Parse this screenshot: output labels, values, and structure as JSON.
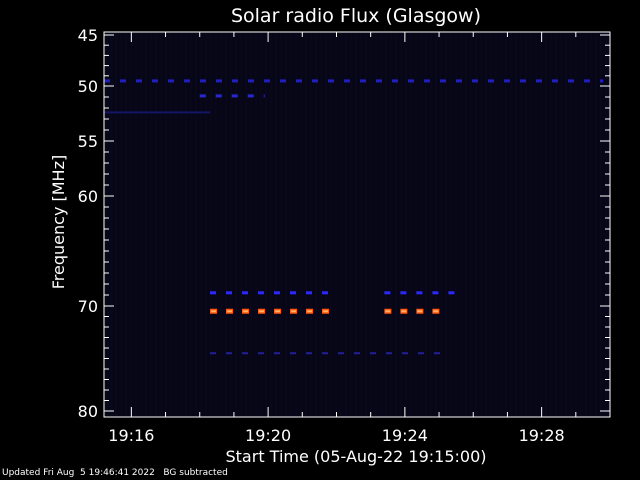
{
  "chart_data": {
    "type": "heatmap",
    "title": "Solar radio Flux (Glasgow)",
    "xlabel": "Start Time (05-Aug-22 19:15:00)",
    "ylabel": "Frequency [MHz]",
    "x_range_minutes": [
      19.25,
      19.49
    ],
    "y_range_mhz": [
      45,
      80
    ],
    "x_ticks": [
      {
        "label": "19:16",
        "minute": 16
      },
      {
        "label": "19:20",
        "minute": 20
      },
      {
        "label": "19:24",
        "minute": 24
      },
      {
        "label": "19:28",
        "minute": 28
      }
    ],
    "y_ticks": [
      {
        "label": "45",
        "mhz": 45
      },
      {
        "label": "50",
        "mhz": 50
      },
      {
        "label": "55",
        "mhz": 55
      },
      {
        "label": "60",
        "mhz": 60
      },
      {
        "label": "70",
        "mhz": 70
      },
      {
        "label": "80",
        "mhz": 80
      }
    ],
    "features": [
      {
        "name": "49.5 MHz persistent line",
        "mhz": 49.5,
        "start": 15.2,
        "end": 29.8,
        "intensity": "medium",
        "color": "#2020c0",
        "dashed": true
      },
      {
        "name": "51 MHz line",
        "mhz": 50.9,
        "start": 18.0,
        "end": 19.9,
        "intensity": "medium",
        "color": "#2828d0",
        "dashed": true
      },
      {
        "name": "52.5 MHz faint line",
        "mhz": 52.4,
        "start": 15.2,
        "end": 18.3,
        "intensity": "low",
        "color": "#141468",
        "dashed": false
      },
      {
        "name": "68.8 MHz burst A",
        "mhz": 68.8,
        "start": 18.3,
        "end": 21.9,
        "intensity": "medium",
        "color": "#2a2aff",
        "dashed": true
      },
      {
        "name": "70.5 MHz burst A",
        "mhz": 70.5,
        "start": 18.3,
        "end": 21.9,
        "intensity": "high",
        "color": "#ff5a14",
        "dashed": true
      },
      {
        "name": "68.8 MHz burst B",
        "mhz": 68.8,
        "start": 23.4,
        "end": 25.7,
        "intensity": "medium",
        "color": "#2a2aff",
        "dashed": true
      },
      {
        "name": "70.5 MHz burst B",
        "mhz": 70.5,
        "start": 23.4,
        "end": 25.2,
        "intensity": "high",
        "color": "#ff5a14",
        "dashed": true
      },
      {
        "name": "74.5 MHz faint line",
        "mhz": 74.5,
        "start": 18.3,
        "end": 25.2,
        "intensity": "low",
        "color": "#20209a",
        "dashed": true
      }
    ],
    "colors": {
      "background": "#000000",
      "plot_background": "#060616",
      "axis": "#ffffff"
    }
  },
  "footer": "Updated Fri Aug  5 19:46:41 2022   BG subtracted"
}
